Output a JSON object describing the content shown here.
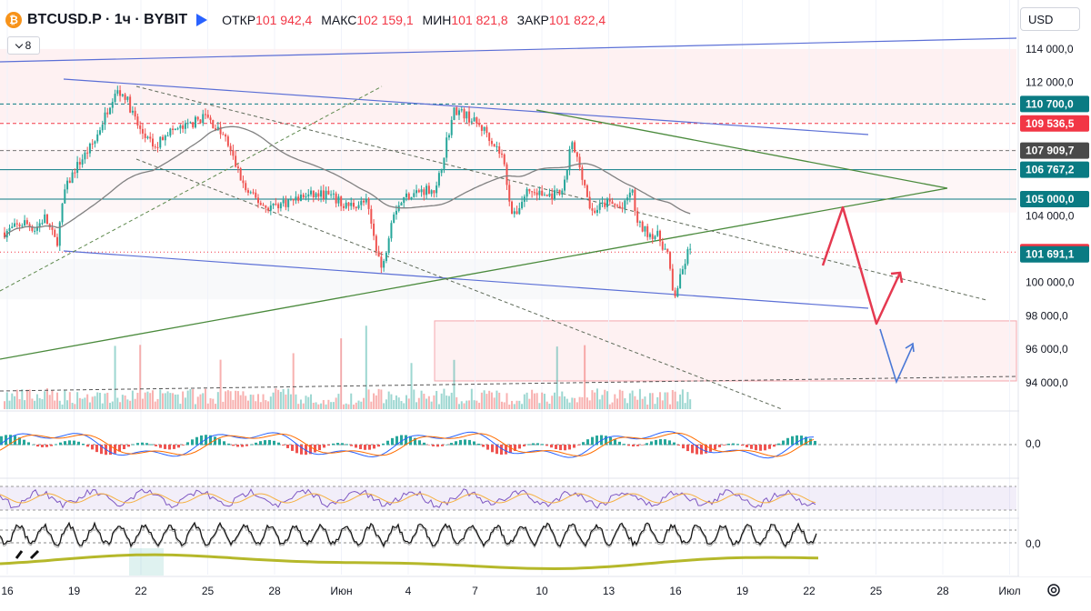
{
  "header": {
    "coin_glyph": "₿",
    "symbol": "BTCUSD.P · 1ч · BYBIT",
    "open_label": "ОТКР",
    "open_value": "101 942,4",
    "high_label": "МАКС",
    "high_value": "102 159,1",
    "low_label": "МИН",
    "low_value": "101 821,8",
    "close_label": "ЗАКР",
    "close_value": "101 822,4",
    "indicators_count": "8"
  },
  "toolbar": {
    "currency": "USD"
  },
  "colors": {
    "up": "#26a69a",
    "down": "#ef5350",
    "teal": "#0a7b83",
    "red_label": "#f23645",
    "trend_blue": "#5b6fd6",
    "trend_green": "#4a8a3c",
    "ma": "#808080",
    "arrow_red": "#e53950",
    "arrow_blue": "#4a78d6"
  },
  "chart_data": {
    "type": "candlestick",
    "symbol": "BTCUSD.P",
    "timeframe": "1ч",
    "exchange": "BYBIT",
    "y_range": [
      92300,
      116500
    ],
    "x_ticks": [
      "16",
      "19",
      "22",
      "25",
      "28",
      "Июн",
      "4",
      "7",
      "10",
      "13",
      "16",
      "19",
      "22",
      "25",
      "28",
      "Июл"
    ],
    "y_ticks": [
      "114 000,0",
      "112 000,0",
      "104 000,0",
      "100 000,0",
      "98 000,0",
      "96 000,0",
      "94 000,0"
    ],
    "price_path": [
      {
        "d": 0,
        "p": 103000
      },
      {
        "d": 1,
        "p": 103600
      },
      {
        "d": 1.5,
        "p": 103200
      },
      {
        "d": 2,
        "p": 103900
      },
      {
        "d": 2.6,
        "p": 102300
      },
      {
        "d": 3,
        "p": 105500
      },
      {
        "d": 3.5,
        "p": 106800
      },
      {
        "d": 4.5,
        "p": 108500
      },
      {
        "d": 5.5,
        "p": 111500
      },
      {
        "d": 6,
        "p": 111200
      },
      {
        "d": 6.7,
        "p": 109200
      },
      {
        "d": 7.5,
        "p": 108000
      },
      {
        "d": 8,
        "p": 109000
      },
      {
        "d": 9,
        "p": 109300
      },
      {
        "d": 10,
        "p": 110000
      },
      {
        "d": 11,
        "p": 108600
      },
      {
        "d": 12,
        "p": 105500
      },
      {
        "d": 13,
        "p": 104500
      },
      {
        "d": 14,
        "p": 104800
      },
      {
        "d": 15,
        "p": 105200
      },
      {
        "d": 16,
        "p": 105300
      },
      {
        "d": 17,
        "p": 104600
      },
      {
        "d": 18,
        "p": 104800
      },
      {
        "d": 18.8,
        "p": 100600
      },
      {
        "d": 19.3,
        "p": 104200
      },
      {
        "d": 20,
        "p": 105200
      },
      {
        "d": 21,
        "p": 105600
      },
      {
        "d": 21.5,
        "p": 105600
      },
      {
        "d": 22,
        "p": 108500
      },
      {
        "d": 22.4,
        "p": 110400
      },
      {
        "d": 23,
        "p": 110000
      },
      {
        "d": 24,
        "p": 109000
      },
      {
        "d": 24.8,
        "p": 107500
      },
      {
        "d": 25.3,
        "p": 103800
      },
      {
        "d": 26,
        "p": 105500
      },
      {
        "d": 27,
        "p": 105200
      },
      {
        "d": 27.8,
        "p": 105300
      },
      {
        "d": 28.2,
        "p": 108400
      },
      {
        "d": 28.7,
        "p": 106700
      },
      {
        "d": 29.2,
        "p": 104200
      },
      {
        "d": 30,
        "p": 104800
      },
      {
        "d": 30.8,
        "p": 104400
      },
      {
        "d": 31.2,
        "p": 105700
      },
      {
        "d": 31.5,
        "p": 103500
      },
      {
        "d": 32,
        "p": 103000
      },
      {
        "d": 32.5,
        "p": 102800
      },
      {
        "d": 33,
        "p": 101700
      },
      {
        "d": 33.3,
        "p": 99000
      },
      {
        "d": 33.7,
        "p": 100500
      },
      {
        "d": 34,
        "p": 101800
      },
      {
        "d": 34.2,
        "p": 101822.4
      }
    ],
    "price_labels": [
      {
        "text": "110 700,0",
        "value": 110700,
        "bg": "#0a7b83"
      },
      {
        "text": "109 536,5",
        "value": 109536.5,
        "bg": "#f23645"
      },
      {
        "text": "107 909,7",
        "value": 107909.7,
        "bg": "#4a4a4a"
      },
      {
        "text": "106 767,2",
        "value": 106767.2,
        "bg": "#0a7b83"
      },
      {
        "text": "105 000,0",
        "value": 105000,
        "bg": "#0a7b83"
      },
      {
        "text": "101 822,4",
        "value": 101822.4,
        "bg": "#f23645"
      },
      {
        "text": "101 691,1",
        "value": 101691.1,
        "bg": "#0a7b83"
      }
    ],
    "horizontal_levels": [
      {
        "value": 110700,
        "style": "dashed",
        "color": "#0a7b83"
      },
      {
        "value": 109536.5,
        "style": "dashed",
        "color": "#f23645"
      },
      {
        "value": 107909.7,
        "style": "dashed",
        "color": "#777777"
      },
      {
        "value": 106767.2,
        "style": "solid",
        "color": "#0a7b83"
      },
      {
        "value": 105000,
        "style": "solid",
        "color": "#0a7b83"
      },
      {
        "value": 101822.4,
        "style": "dotted",
        "color": "#f23645"
      }
    ],
    "panes": [
      {
        "name": "macd",
        "level_label": "0,0"
      },
      {
        "name": "rsi",
        "level_label": ""
      },
      {
        "name": "stochastic",
        "level_label": "0,0"
      }
    ]
  }
}
